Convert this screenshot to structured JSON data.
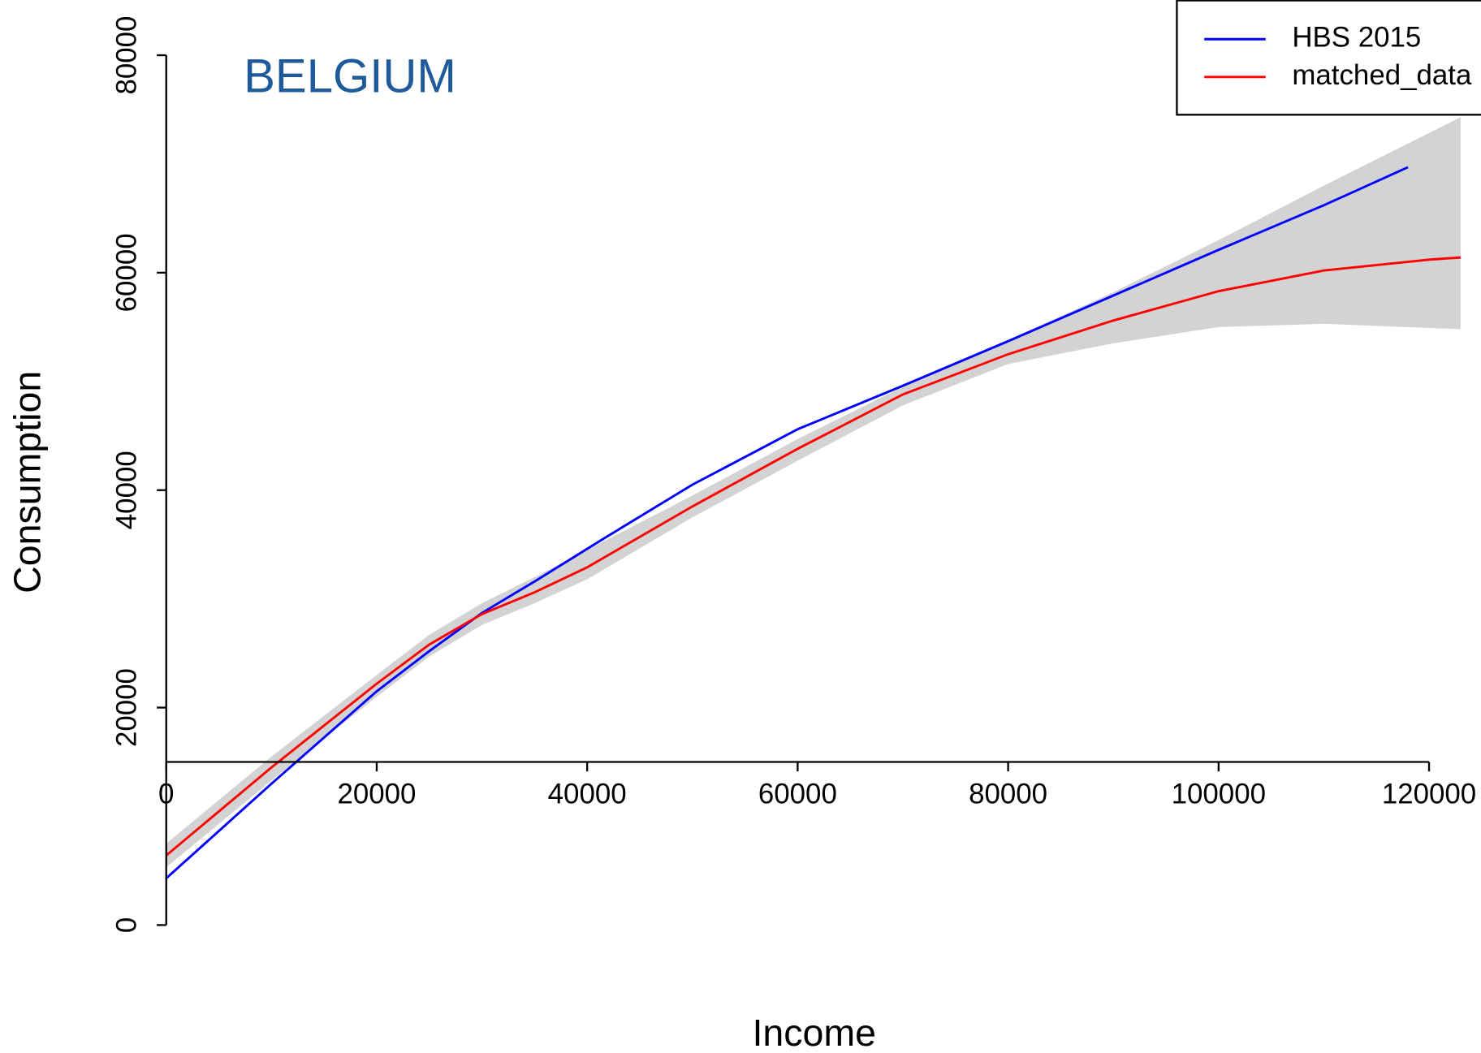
{
  "chart_data": {
    "type": "line",
    "title": "BELGIUM",
    "title_color": "#1f5a9a",
    "x_label": "Income",
    "y_label": "Consumption",
    "xlim": [
      0,
      120000
    ],
    "ylim": [
      0,
      80000
    ],
    "xticks": [
      0,
      20000,
      40000,
      60000,
      80000,
      100000,
      120000
    ],
    "yticks": [
      0,
      20000,
      40000,
      60000,
      80000
    ],
    "x_axis_at": 15000,
    "legend_position": "upper right",
    "band": {
      "color": "#d3d3d3",
      "x": [
        0,
        10000,
        20000,
        25000,
        30000,
        35000,
        40000,
        50000,
        60000,
        70000,
        80000,
        90000,
        100000,
        110000,
        123000
      ],
      "upper": [
        7500,
        15500,
        23000,
        26700,
        29600,
        32000,
        34500,
        39500,
        44700,
        49500,
        53800,
        58200,
        63000,
        68000,
        74300
      ],
      "lower": [
        5300,
        13300,
        21000,
        24700,
        27600,
        29600,
        31800,
        37500,
        42700,
        47800,
        51600,
        53500,
        55000,
        55300,
        54800
      ]
    },
    "series": [
      {
        "name": "HBS 2015",
        "color": "#0000ff",
        "x": [
          0,
          10000,
          20000,
          25000,
          30000,
          35000,
          40000,
          42000,
          50000,
          60000,
          70000,
          80000,
          90000,
          100000,
          110000,
          118000
        ],
        "values": [
          4300,
          13000,
          21500,
          25200,
          28700,
          31600,
          34600,
          35800,
          40500,
          45600,
          49600,
          53700,
          57900,
          62100,
          66200,
          69700
        ]
      },
      {
        "name": "matched_data",
        "color": "#ff0000",
        "x": [
          0,
          10000,
          20000,
          25000,
          30000,
          35000,
          40000,
          50000,
          60000,
          70000,
          80000,
          90000,
          100000,
          110000,
          120000,
          123000
        ],
        "values": [
          6400,
          14500,
          22200,
          25800,
          28600,
          30600,
          32900,
          38500,
          43800,
          48800,
          52500,
          55600,
          58300,
          60200,
          61200,
          61400
        ]
      }
    ]
  }
}
